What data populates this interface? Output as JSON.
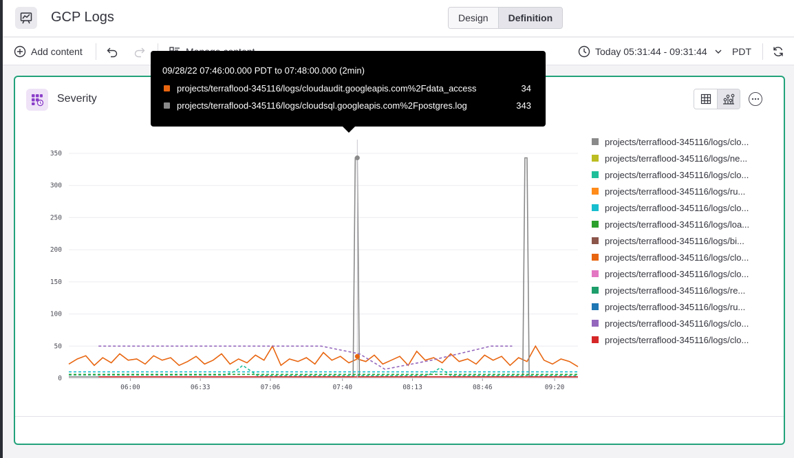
{
  "header": {
    "title": "GCP Logs",
    "modes": [
      "Design",
      "Definition"
    ],
    "active_mode": "Definition"
  },
  "toolbar": {
    "add_content": "Add content",
    "manage_content": "Manage content",
    "time_range": "Today 05:31:44 - 09:31:44",
    "timezone": "PDT"
  },
  "panel": {
    "title": "Severity",
    "view_modes": [
      "table-icon",
      "chart-icon"
    ],
    "active_view": "chart"
  },
  "tooltip": {
    "header": "09/28/22 07:46:00.000 PDT to 07:48:00.000 (2min)",
    "rows": [
      {
        "label": "projects/terraflood-345116/logs/cloudaudit.googleapis.com%2Fdata_access",
        "value": "34",
        "color": "#e8650f"
      },
      {
        "label": "projects/terraflood-345116/logs/cloudsql.googleapis.com%2Fpostgres.log",
        "value": "343",
        "color": "#8a8a8a"
      }
    ]
  },
  "legend": [
    {
      "label": "projects/terraflood-345116/logs/clo...",
      "color": "#8a8a8a"
    },
    {
      "label": "projects/terraflood-345116/logs/ne...",
      "color": "#bcbd22"
    },
    {
      "label": "projects/terraflood-345116/logs/clo...",
      "color": "#1fbf9a"
    },
    {
      "label": "projects/terraflood-345116/logs/ru...",
      "color": "#ff8c1a"
    },
    {
      "label": "projects/terraflood-345116/logs/clo...",
      "color": "#17becf"
    },
    {
      "label": "projects/terraflood-345116/logs/loa...",
      "color": "#2ca02c"
    },
    {
      "label": "projects/terraflood-345116/logs/bi...",
      "color": "#8c564b"
    },
    {
      "label": "projects/terraflood-345116/logs/clo...",
      "color": "#e8650f"
    },
    {
      "label": "projects/terraflood-345116/logs/clo...",
      "color": "#e377c2"
    },
    {
      "label": "projects/terraflood-345116/logs/re...",
      "color": "#1e9e6b"
    },
    {
      "label": "projects/terraflood-345116/logs/ru...",
      "color": "#1f77b4"
    },
    {
      "label": "projects/terraflood-345116/logs/clo...",
      "color": "#9467bd"
    },
    {
      "label": "projects/terraflood-345116/logs/clo...",
      "color": "#d62728"
    }
  ],
  "chart_data": {
    "type": "line",
    "x_tick_labels": [
      "06:00",
      "06:33",
      "07:06",
      "07:40",
      "08:13",
      "08:46",
      "09:20"
    ],
    "ylim": [
      0,
      350
    ],
    "y_ticks": [
      0,
      50,
      100,
      150,
      200,
      250,
      300,
      350
    ],
    "grid": true,
    "legend_position": "right",
    "x_range_minutes": [
      331,
      571
    ],
    "series": [
      {
        "color": "#e8650f",
        "style": "solid",
        "x": [
          331,
          335,
          339,
          343,
          347,
          351,
          355,
          359,
          363,
          367,
          371,
          375,
          379,
          383,
          387,
          391,
          395,
          399,
          403,
          407,
          411,
          415,
          419,
          423,
          427,
          431,
          435,
          439,
          443,
          447,
          451,
          455,
          459,
          463,
          467,
          471,
          475,
          479,
          483,
          487,
          491,
          495,
          499,
          503,
          507,
          511,
          515,
          519,
          523,
          527,
          531,
          535,
          539,
          543,
          547,
          551,
          555,
          559,
          563,
          567,
          571
        ],
        "values": [
          22,
          30,
          35,
          20,
          32,
          24,
          38,
          28,
          30,
          22,
          35,
          28,
          32,
          20,
          26,
          34,
          22,
          28,
          38,
          22,
          30,
          24,
          36,
          28,
          50,
          20,
          30,
          26,
          32,
          22,
          40,
          28,
          34,
          24,
          30,
          26,
          36,
          22,
          28,
          34,
          20,
          42,
          28,
          32,
          24,
          38,
          26,
          30,
          22,
          36,
          28,
          34,
          20,
          32,
          26,
          50,
          28,
          22,
          30,
          26,
          18
        ]
      },
      {
        "color": "#8a8a8a",
        "style": "solid",
        "x": [
          331,
          460,
          465,
          466,
          467,
          468,
          473,
          540,
          545,
          546,
          547,
          548,
          553,
          571
        ],
        "values": [
          2,
          2,
          2,
          343,
          343,
          2,
          2,
          2,
          2,
          343,
          343,
          2,
          2,
          2
        ]
      },
      {
        "color": "#9467bd",
        "style": "dashed",
        "x": [
          345,
          405,
          450,
          468,
          480,
          502,
          530,
          540
        ],
        "values": [
          50,
          50,
          50,
          38,
          14,
          28,
          50,
          50
        ]
      },
      {
        "color": "#17becf",
        "style": "dashed",
        "x": [
          331,
          571
        ],
        "values": [
          10,
          10
        ]
      },
      {
        "color": "#1fbf9a",
        "style": "dashed",
        "x": [
          331,
          405,
          410,
          413,
          420,
          470,
          500,
          506,
          511,
          571
        ],
        "values": [
          5,
          5,
          12,
          20,
          4,
          4,
          4,
          16,
          4,
          4
        ]
      },
      {
        "color": "#d62728",
        "style": "solid",
        "x": [
          345,
          571
        ],
        "values": [
          2,
          2
        ]
      },
      {
        "color": "#2ca02c",
        "style": "dashed",
        "x": [
          331,
          571
        ],
        "values": [
          6,
          6
        ]
      }
    ]
  }
}
